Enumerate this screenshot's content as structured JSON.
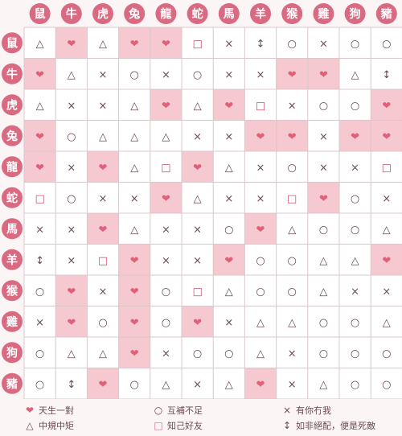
{
  "animals": [
    "鼠",
    "牛",
    "虎",
    "兔",
    "龍",
    "蛇",
    "馬",
    "羊",
    "猴",
    "雞",
    "狗",
    "豬"
  ],
  "symbols": {
    "H": "❤",
    "T": "△",
    "X": "×",
    "O": "○",
    "S": "□",
    "U": "↕"
  },
  "matrix": [
    [
      "T",
      "H",
      "T",
      "H",
      "H",
      "S",
      "X",
      "U",
      "O",
      "X",
      "O",
      "O"
    ],
    [
      "H",
      "T",
      "X",
      "O",
      "X",
      "O",
      "X",
      "X",
      "H",
      "H",
      "T",
      "U"
    ],
    [
      "T",
      "X",
      "X",
      "T",
      "H",
      "T",
      "H",
      "S",
      "X",
      "O",
      "O",
      "H"
    ],
    [
      "H",
      "O",
      "T",
      "T",
      "T",
      "X",
      "X",
      "H",
      "H",
      "X",
      "H",
      "H"
    ],
    [
      "H",
      "X",
      "H",
      "T",
      "S",
      "H",
      "T",
      "X",
      "O",
      "X",
      "X",
      "S"
    ],
    [
      "S",
      "O",
      "X",
      "X",
      "H",
      "T",
      "X",
      "X",
      "S",
      "H",
      "O",
      "X"
    ],
    [
      "X",
      "X",
      "H",
      "T",
      "X",
      "X",
      "O",
      "H",
      "T",
      "O",
      "O",
      "T"
    ],
    [
      "U",
      "X",
      "S",
      "H",
      "X",
      "X",
      "H",
      "O",
      "O",
      "T",
      "T",
      "H"
    ],
    [
      "O",
      "H",
      "X",
      "H",
      "O",
      "S",
      "T",
      "O",
      "O",
      "T",
      "X",
      "X"
    ],
    [
      "X",
      "H",
      "O",
      "H",
      "O",
      "H",
      "X",
      "T",
      "T",
      "O",
      "O",
      "T"
    ],
    [
      "O",
      "T",
      "T",
      "H",
      "X",
      "O",
      "O",
      "T",
      "X",
      "O",
      "O",
      "O"
    ],
    [
      "O",
      "U",
      "H",
      "O",
      "T",
      "X",
      "T",
      "H",
      "X",
      "T",
      "O",
      "O"
    ]
  ],
  "legend": [
    {
      "icon": "heart-icon",
      "symbol": "❤",
      "label": "天生一對"
    },
    {
      "icon": "circle-icon",
      "symbol": "○",
      "label": "互補不足"
    },
    {
      "icon": "cross-icon",
      "symbol": "×",
      "label": "有你冇我"
    },
    {
      "icon": "triangle-icon",
      "symbol": "△",
      "label": "中規中矩"
    },
    {
      "icon": "square-icon",
      "symbol": "□",
      "label": "知己好友"
    },
    {
      "icon": "updown-arrow-icon",
      "symbol": "↕",
      "label": "如非絕配，便是死敵"
    }
  ],
  "colors": {
    "heart": "#e0607a",
    "heart_bg": "#f5c9cf",
    "circle_bg": "#d96a82",
    "symbol": "#6a4a55",
    "grid": "#d8c8cc"
  }
}
